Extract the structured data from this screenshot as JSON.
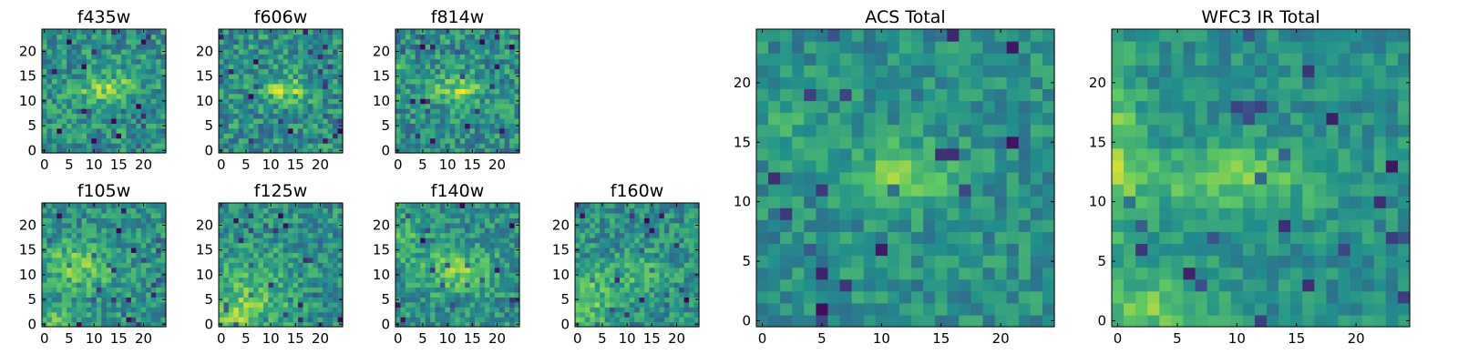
{
  "figure": {
    "colormap": [
      "#440154",
      "#3b528b",
      "#21918c",
      "#5ec962",
      "#fde725"
    ]
  },
  "chart_data": [
    {
      "type": "heatmap",
      "title": "f435w",
      "grid_size": 25,
      "xlim": [
        0,
        24
      ],
      "ylim": [
        0,
        24
      ],
      "xticks": [
        0,
        5,
        10,
        15,
        20
      ],
      "yticks": [
        0,
        5,
        10,
        15,
        20
      ],
      "xtick_labels": [
        "0",
        "5",
        "10",
        "15",
        "20"
      ],
      "ytick_labels": [
        "0",
        "5",
        "10",
        "15",
        "20"
      ],
      "noise": 0.2,
      "seed": 11,
      "blobs": [
        {
          "cx": 12,
          "cy": 12.5,
          "sx": 5,
          "sy": 2.5,
          "amp": 0.3
        },
        {
          "cx": 17,
          "cy": 15,
          "sx": 3,
          "sy": 2.5,
          "amp": 0.12
        }
      ]
    },
    {
      "type": "heatmap",
      "title": "f606w",
      "grid_size": 25,
      "xlim": [
        0,
        24
      ],
      "ylim": [
        0,
        24
      ],
      "xticks": [
        0,
        5,
        10,
        15,
        20
      ],
      "yticks": [
        0,
        5,
        10,
        15,
        20
      ],
      "xtick_labels": [
        "0",
        "5",
        "10",
        "15",
        "20"
      ],
      "ytick_labels": [
        "0",
        "5",
        "10",
        "15",
        "20"
      ],
      "noise": 0.2,
      "seed": 22,
      "blobs": [
        {
          "cx": 13,
          "cy": 12.5,
          "sx": 4,
          "sy": 2.5,
          "amp": 0.35
        }
      ]
    },
    {
      "type": "heatmap",
      "title": "f814w",
      "grid_size": 25,
      "xlim": [
        0,
        24
      ],
      "ylim": [
        0,
        24
      ],
      "xticks": [
        0,
        5,
        10,
        15,
        20
      ],
      "yticks": [
        0,
        5,
        10,
        15,
        20
      ],
      "xtick_labels": [
        "0",
        "5",
        "10",
        "15",
        "20"
      ],
      "ytick_labels": [
        "0",
        "5",
        "10",
        "15",
        "20"
      ],
      "noise": 0.2,
      "seed": 33,
      "blobs": [
        {
          "cx": 12,
          "cy": 12.5,
          "sx": 5,
          "sy": 2.5,
          "amp": 0.32
        },
        {
          "cx": 1,
          "cy": 16,
          "sx": 2,
          "sy": 2.5,
          "amp": 0.15
        }
      ]
    },
    {
      "type": "heatmap",
      "title": "f105w",
      "grid_size": 25,
      "xlim": [
        0,
        24
      ],
      "ylim": [
        0,
        24
      ],
      "xticks": [
        0,
        5,
        10,
        15,
        20
      ],
      "yticks": [
        0,
        5,
        10,
        15,
        20
      ],
      "xtick_labels": [
        "0",
        "5",
        "10",
        "15",
        "20"
      ],
      "ytick_labels": [
        "0",
        "5",
        "10",
        "15",
        "20"
      ],
      "noise": 0.18,
      "seed": 44,
      "blobs": [
        {
          "cx": 7,
          "cy": 12,
          "sx": 7,
          "sy": 5,
          "amp": 0.25
        },
        {
          "cx": 2,
          "cy": 1,
          "sx": 4,
          "sy": 3,
          "amp": 0.2
        }
      ]
    },
    {
      "type": "heatmap",
      "title": "f125w",
      "grid_size": 25,
      "xlim": [
        0,
        24
      ],
      "ylim": [
        0,
        24
      ],
      "xticks": [
        0,
        5,
        10,
        15,
        20
      ],
      "yticks": [
        0,
        5,
        10,
        15,
        20
      ],
      "xtick_labels": [
        "0",
        "5",
        "10",
        "15",
        "20"
      ],
      "ytick_labels": [
        "0",
        "5",
        "10",
        "15",
        "20"
      ],
      "noise": 0.18,
      "seed": 55,
      "blobs": [
        {
          "cx": 6,
          "cy": 6,
          "sx": 8,
          "sy": 8,
          "amp": 0.22
        },
        {
          "cx": 2,
          "cy": 1,
          "sx": 4,
          "sy": 3,
          "amp": 0.22
        }
      ]
    },
    {
      "type": "heatmap",
      "title": "f140w",
      "grid_size": 25,
      "xlim": [
        0,
        24
      ],
      "ylim": [
        0,
        24
      ],
      "xticks": [
        0,
        5,
        10,
        15,
        20
      ],
      "yticks": [
        0,
        5,
        10,
        15,
        20
      ],
      "xtick_labels": [
        "0",
        "5",
        "10",
        "15",
        "20"
      ],
      "ytick_labels": [
        "0",
        "5",
        "10",
        "15",
        "20"
      ],
      "noise": 0.18,
      "seed": 66,
      "blobs": [
        {
          "cx": 12,
          "cy": 11,
          "sx": 7,
          "sy": 4,
          "amp": 0.27
        },
        {
          "cx": 1,
          "cy": 18,
          "sx": 3,
          "sy": 5,
          "amp": 0.18
        }
      ]
    },
    {
      "type": "heatmap",
      "title": "f160w",
      "grid_size": 25,
      "xlim": [
        0,
        24
      ],
      "ylim": [
        0,
        24
      ],
      "xticks": [
        0,
        5,
        10,
        15,
        20
      ],
      "yticks": [
        0,
        5,
        10,
        15,
        20
      ],
      "xtick_labels": [
        "0",
        "5",
        "10",
        "15",
        "20"
      ],
      "ytick_labels": [
        "0",
        "5",
        "10",
        "15",
        "20"
      ],
      "noise": 0.18,
      "seed": 77,
      "blobs": [
        {
          "cx": 2,
          "cy": 5,
          "sx": 4,
          "sy": 7,
          "amp": 0.25
        },
        {
          "cx": 12,
          "cy": 10,
          "sx": 6,
          "sy": 4,
          "amp": 0.15
        }
      ]
    },
    {
      "type": "heatmap",
      "title": "ACS Total",
      "grid_size": 25,
      "xlim": [
        0,
        24
      ],
      "ylim": [
        0,
        24
      ],
      "xticks": [
        0,
        5,
        10,
        15,
        20
      ],
      "yticks": [
        0,
        5,
        10,
        15,
        20
      ],
      "xtick_labels": [
        "0",
        "5",
        "10",
        "15",
        "20"
      ],
      "ytick_labels": [
        "0",
        "5",
        "10",
        "15",
        "20"
      ],
      "noise": 0.14,
      "seed": 88,
      "blobs": [
        {
          "cx": 12,
          "cy": 12.5,
          "sx": 4,
          "sy": 2.5,
          "amp": 0.32
        },
        {
          "cx": 2,
          "cy": 16,
          "sx": 3,
          "sy": 2,
          "amp": 0.12
        }
      ]
    },
    {
      "type": "heatmap",
      "title": "WFC3 IR Total",
      "grid_size": 25,
      "xlim": [
        0,
        24
      ],
      "ylim": [
        0,
        24
      ],
      "xticks": [
        0,
        5,
        10,
        15,
        20
      ],
      "yticks": [
        0,
        5,
        10,
        15,
        20
      ],
      "xtick_labels": [
        "0",
        "5",
        "10",
        "15",
        "20"
      ],
      "ytick_labels": [
        "0",
        "5",
        "10",
        "15",
        "20"
      ],
      "noise": 0.12,
      "seed": 99,
      "blobs": [
        {
          "cx": 9,
          "cy": 12,
          "sx": 8,
          "sy": 3,
          "amp": 0.25
        },
        {
          "cx": 0,
          "cy": 14,
          "sx": 2,
          "sy": 8,
          "amp": 0.25
        },
        {
          "cx": 3,
          "cy": 1,
          "sx": 5,
          "sy": 3,
          "amp": 0.25
        }
      ]
    }
  ]
}
